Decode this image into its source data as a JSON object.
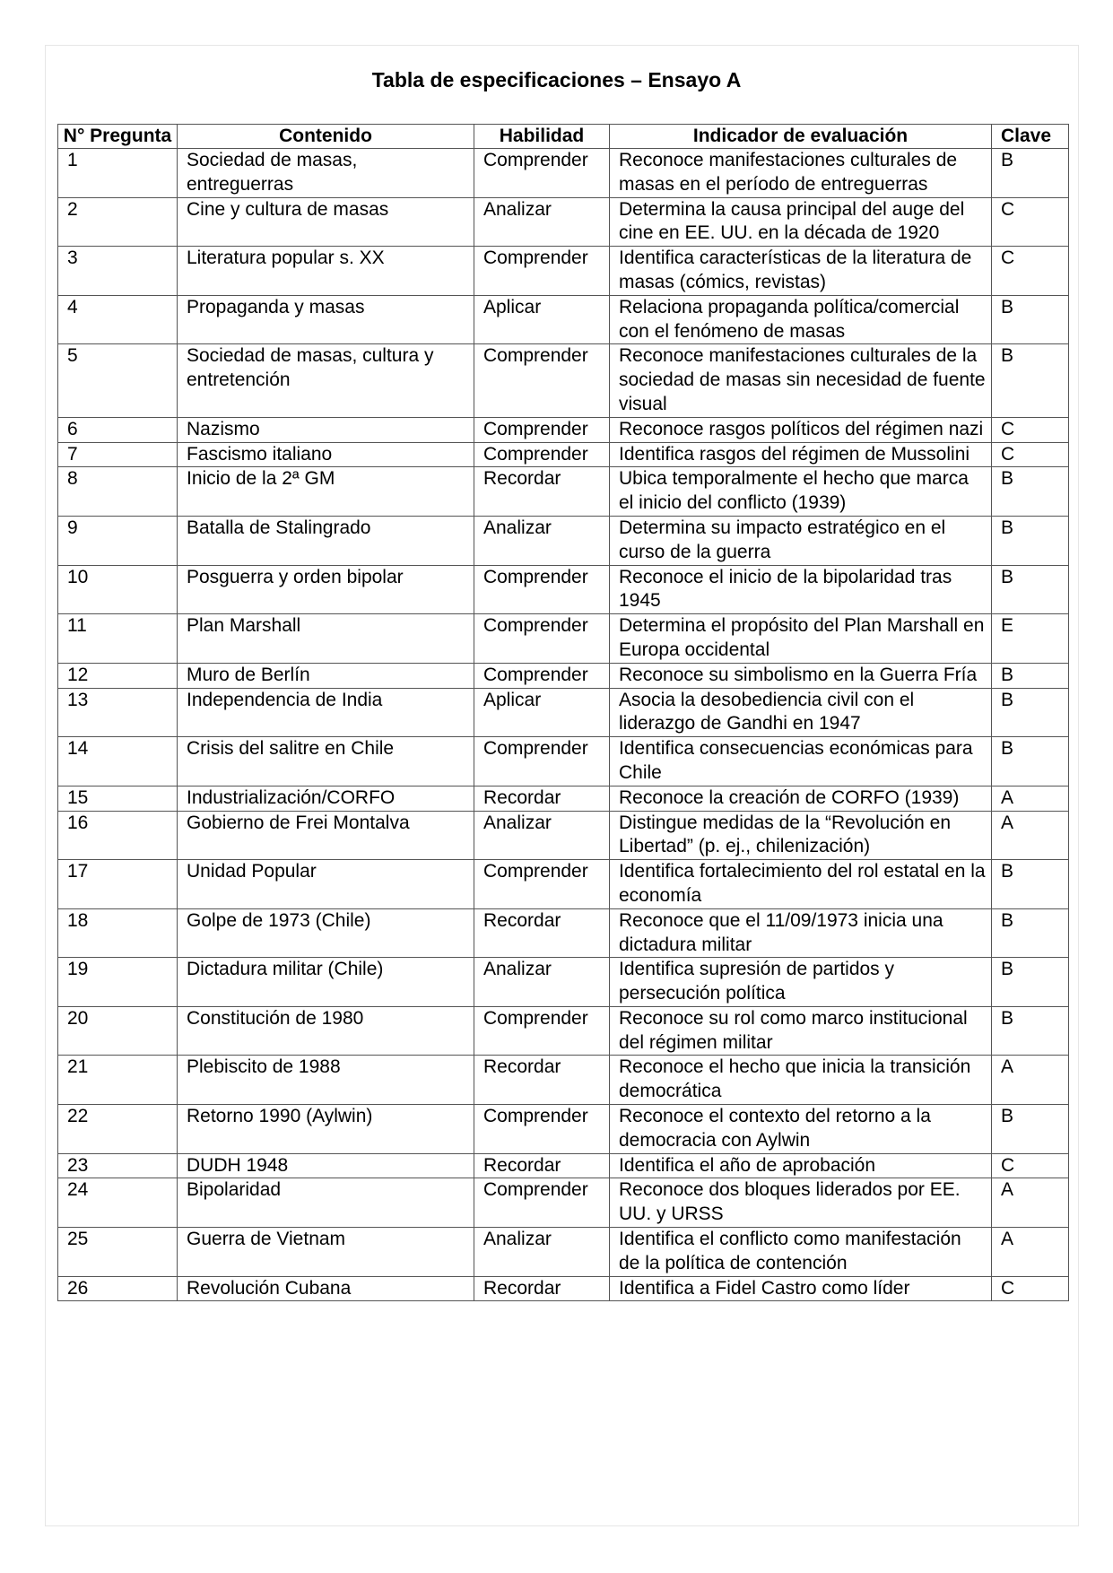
{
  "title": "Tabla de especificaciones – Ensayo A",
  "headers": {
    "num": "N° Pregunta",
    "contenido": "Contenido",
    "habilidad": "Habilidad",
    "indicador": "Indicador de evaluación",
    "clave": "Clave"
  },
  "rows": [
    {
      "num": "1",
      "contenido": "Sociedad de masas, entreguerras",
      "habilidad": "Comprender",
      "indicador": "Reconoce manifestaciones culturales de masas en el período de entreguerras",
      "clave": "B"
    },
    {
      "num": "2",
      "contenido": "Cine y cultura de masas",
      "habilidad": "Analizar",
      "indicador": "Determina la causa principal del auge del cine en EE. UU. en la década de 1920",
      "clave": "C"
    },
    {
      "num": "3",
      "contenido": "Literatura popular s. XX",
      "habilidad": "Comprender",
      "indicador": "Identifica características de la literatura de masas (cómics, revistas)",
      "clave": "C"
    },
    {
      "num": "4",
      "contenido": "Propaganda y masas",
      "habilidad": "Aplicar",
      "indicador": "Relaciona propaganda política/comercial con el fenómeno de masas",
      "clave": "B"
    },
    {
      "num": "5",
      "contenido": "Sociedad de masas, cultura y entretención",
      "habilidad": "Comprender",
      "indicador": "Reconoce manifestaciones culturales de la sociedad de masas sin necesidad de fuente visual",
      "clave": "B"
    },
    {
      "num": "6",
      "contenido": "Nazismo",
      "habilidad": "Comprender",
      "indicador": "Reconoce rasgos políticos del régimen nazi",
      "clave": "C"
    },
    {
      "num": "7",
      "contenido": "Fascismo italiano",
      "habilidad": "Comprender",
      "indicador": "Identifica rasgos del régimen de Mussolini",
      "clave": "C"
    },
    {
      "num": "8",
      "contenido": "Inicio de la 2ª GM",
      "habilidad": "Recordar",
      "indicador": "Ubica temporalmente el hecho que marca el inicio del conflicto (1939)",
      "clave": "B"
    },
    {
      "num": "9",
      "contenido": "Batalla de Stalingrado",
      "habilidad": "Analizar",
      "indicador": "Determina su impacto estratégico en el curso de la guerra",
      "clave": "B"
    },
    {
      "num": "10",
      "contenido": "Posguerra y orden bipolar",
      "habilidad": "Comprender",
      "indicador": "Reconoce el inicio de la bipolaridad tras 1945",
      "clave": "B"
    },
    {
      "num": "11",
      "contenido": "Plan Marshall",
      "habilidad": "Comprender",
      "indicador": "Determina el propósito del Plan Marshall en Europa occidental",
      "clave": "E"
    },
    {
      "num": "12",
      "contenido": "Muro de Berlín",
      "habilidad": "Comprender",
      "indicador": "Reconoce su simbolismo en la Guerra Fría",
      "clave": "B"
    },
    {
      "num": "13",
      "contenido": "Independencia de India",
      "habilidad": "Aplicar",
      "indicador": "Asocia la desobediencia civil con el liderazgo de Gandhi en 1947",
      "clave": "B"
    },
    {
      "num": "14",
      "contenido": "Crisis del salitre en Chile",
      "habilidad": "Comprender",
      "indicador": "Identifica consecuencias económicas para Chile",
      "clave": "B"
    },
    {
      "num": "15",
      "contenido": "Industrialización/CORFO",
      "habilidad": "Recordar",
      "indicador": "Reconoce la creación de CORFO (1939)",
      "clave": "A"
    },
    {
      "num": "16",
      "contenido": "Gobierno de Frei Montalva",
      "habilidad": "Analizar",
      "indicador": "Distingue medidas de la “Revolución en Libertad” (p. ej., chilenización)",
      "clave": "A"
    },
    {
      "num": "17",
      "contenido": "Unidad Popular",
      "habilidad": "Comprender",
      "indicador": "Identifica fortalecimiento del rol estatal en la economía",
      "clave": "B"
    },
    {
      "num": "18",
      "contenido": "Golpe de 1973 (Chile)",
      "habilidad": "Recordar",
      "indicador": "Reconoce que el 11/09/1973 inicia una dictadura militar",
      "clave": "B"
    },
    {
      "num": "19",
      "contenido": "Dictadura militar (Chile)",
      "habilidad": "Analizar",
      "indicador": "Identifica supresión de partidos y persecución política",
      "clave": "B"
    },
    {
      "num": "20",
      "contenido": "Constitución de 1980",
      "habilidad": "Comprender",
      "indicador": "Reconoce su rol como marco institucional del régimen militar",
      "clave": "B"
    },
    {
      "num": "21",
      "contenido": "Plebiscito de 1988",
      "habilidad": "Recordar",
      "indicador": "Reconoce el hecho que inicia la transición democrática",
      "clave": "A"
    },
    {
      "num": "22",
      "contenido": "Retorno 1990 (Aylwin)",
      "habilidad": "Comprender",
      "indicador": "Reconoce el contexto del retorno a la democracia con Aylwin",
      "clave": "B"
    },
    {
      "num": "23",
      "contenido": "DUDH 1948",
      "habilidad": "Recordar",
      "indicador": "Identifica el año de aprobación",
      "clave": "C"
    },
    {
      "num": "24",
      "contenido": "Bipolaridad",
      "habilidad": "Comprender",
      "indicador": "Reconoce dos bloques liderados por EE. UU. y URSS",
      "clave": "A"
    },
    {
      "num": "25",
      "contenido": "Guerra de Vietnam",
      "habilidad": "Analizar",
      "indicador": "Identifica el conflicto como manifestación de la política de contención",
      "clave": "A"
    },
    {
      "num": "26",
      "contenido": "Revolución Cubana",
      "habilidad": "Recordar",
      "indicador": "Identifica a Fidel Castro como líder",
      "clave": "C"
    }
  ]
}
